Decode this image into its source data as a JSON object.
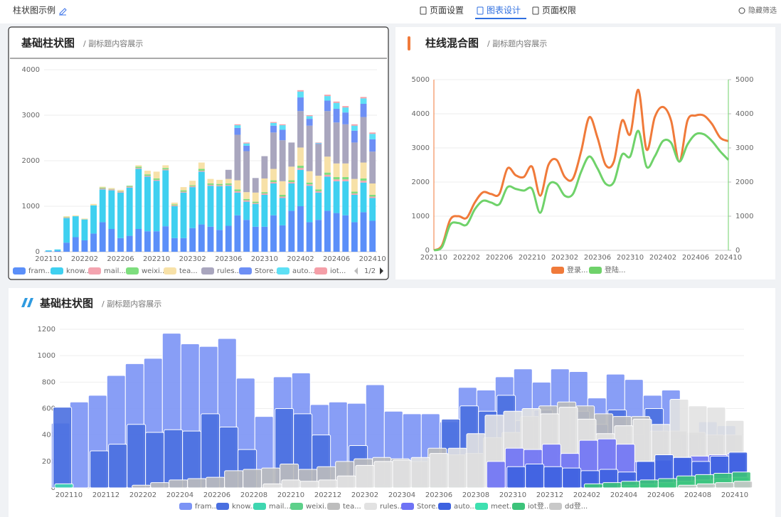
{
  "header": {
    "title": "柱状图示例",
    "tabs": [
      "页面设置",
      "图表设计",
      "页面权限"
    ],
    "active_tab": 1,
    "filter": "隐藏筛选"
  },
  "chart_data": [
    {
      "type": "bar",
      "stacked": true,
      "title": "基础柱状图",
      "subtitle": "/ 副标题内容展示",
      "legend_page": "1/2",
      "categories": [
        "202110",
        null,
        null,
        null,
        "202202",
        null,
        null,
        null,
        "202206",
        null,
        null,
        null,
        "202210",
        null,
        null,
        null,
        "202302",
        null,
        null,
        null,
        "202306",
        null,
        null,
        null,
        "202310",
        null,
        null,
        null,
        "202402",
        null,
        null,
        null,
        "202406",
        null,
        null,
        null,
        "202410"
      ],
      "ylim": [
        0,
        4000
      ],
      "yticks": [
        0,
        1000,
        2000,
        3000,
        4000
      ],
      "grid": true,
      "series": [
        {
          "name": "fram...",
          "color": "#5b8ff9",
          "values": [
            10,
            20,
            200,
            320,
            250,
            400,
            650,
            500,
            300,
            350,
            500,
            450,
            450,
            560,
            300,
            300,
            520,
            600,
            550,
            480,
            570,
            800,
            700,
            550,
            550,
            800,
            580,
            900,
            1000,
            650,
            700,
            900,
            850,
            800,
            650,
            870,
            680
          ]
        },
        {
          "name": "know...",
          "color": "#3fd0f0",
          "values": [
            20,
            30,
            540,
            460,
            460,
            620,
            720,
            850,
            1000,
            1060,
            1320,
            1200,
            1110,
            1230,
            700,
            1000,
            900,
            1160,
            900,
            960,
            880,
            500,
            400,
            500,
            700,
            700,
            600,
            600,
            800,
            800,
            600,
            750,
            700,
            750,
            600,
            650,
            500
          ]
        },
        {
          "name": "mail...",
          "color": "#f4a4b0",
          "values": [
            0,
            0,
            10,
            0,
            0,
            0,
            20,
            20,
            20,
            20,
            20,
            20,
            20,
            20,
            20,
            20,
            20,
            20,
            20,
            20,
            20,
            30,
            30,
            20,
            30,
            30,
            30,
            30,
            40,
            30,
            30,
            40,
            40,
            40,
            30,
            40,
            30
          ]
        },
        {
          "name": "weixi...",
          "color": "#7ede7e",
          "values": [
            0,
            0,
            10,
            0,
            0,
            0,
            20,
            10,
            10,
            20,
            30,
            30,
            30,
            30,
            20,
            30,
            20,
            40,
            30,
            30,
            30,
            40,
            30,
            30,
            30,
            40,
            40,
            40,
            50,
            40,
            40,
            50,
            50,
            50,
            40,
            50,
            40
          ]
        },
        {
          "name": "tea...",
          "color": "#f7e1a8",
          "values": [
            0,
            0,
            20,
            20,
            20,
            30,
            20,
            20,
            30,
            0,
            30,
            80,
            150,
            60,
            40,
            70,
            100,
            140,
            100,
            90,
            100,
            200,
            150,
            200,
            300,
            250,
            300,
            300,
            400,
            250,
            300,
            350,
            300,
            300,
            280,
            350,
            250
          ]
        },
        {
          "name": "rules...",
          "color": "#a9a6be",
          "values": [
            0,
            0,
            0,
            0,
            0,
            0,
            0,
            0,
            0,
            0,
            0,
            0,
            0,
            0,
            0,
            0,
            0,
            0,
            0,
            0,
            200,
            1000,
            900,
            320,
            490,
            800,
            900,
            530,
            800,
            1000,
            700,
            1000,
            900,
            860,
            800,
            1000,
            700
          ]
        },
        {
          "name": "Store...",
          "color": "#6d8ff5",
          "values": [
            0,
            0,
            0,
            0,
            0,
            0,
            0,
            0,
            0,
            0,
            0,
            0,
            0,
            0,
            0,
            0,
            0,
            0,
            0,
            0,
            0,
            150,
            120,
            0,
            0,
            150,
            230,
            0,
            300,
            150,
            10,
            230,
            300,
            260,
            260,
            290,
            270
          ]
        },
        {
          "name": "auto...",
          "color": "#5ee0f5",
          "values": [
            0,
            0,
            0,
            0,
            0,
            0,
            0,
            0,
            0,
            0,
            0,
            0,
            0,
            0,
            0,
            0,
            0,
            0,
            0,
            0,
            0,
            60,
            50,
            0,
            0,
            60,
            100,
            0,
            130,
            60,
            10,
            100,
            130,
            110,
            110,
            120,
            120
          ]
        },
        {
          "name": "iot...",
          "color": "#f59fa8",
          "values": [
            0,
            0,
            0,
            0,
            0,
            0,
            0,
            0,
            0,
            0,
            0,
            0,
            0,
            0,
            0,
            0,
            0,
            0,
            0,
            0,
            0,
            20,
            20,
            0,
            0,
            20,
            20,
            0,
            30,
            20,
            10,
            30,
            30,
            30,
            30,
            30,
            30
          ]
        }
      ]
    },
    {
      "type": "line",
      "smooth": true,
      "title": "柱线混合图",
      "subtitle": "/ 副标题内容展示",
      "categories": [
        "202110",
        null,
        null,
        null,
        "202202",
        null,
        null,
        null,
        "202206",
        null,
        null,
        null,
        "202210",
        null,
        null,
        null,
        "202302",
        null,
        null,
        null,
        "202306",
        null,
        null,
        null,
        "202310",
        null,
        null,
        null,
        "202402",
        null,
        null,
        null,
        "202406",
        null,
        null,
        null,
        "202410"
      ],
      "ylim": [
        0,
        5000
      ],
      "yticks": [
        0,
        1000,
        2000,
        3000,
        4000,
        5000
      ],
      "y2lim": [
        0,
        5000
      ],
      "y2ticks": [
        0,
        1000,
        2000,
        3000,
        4000,
        5000
      ],
      "grid": true,
      "series": [
        {
          "name": "登录...",
          "color": "#f07a3a",
          "values": [
            0,
            150,
            900,
            1000,
            950,
            1400,
            1700,
            1650,
            1650,
            2400,
            2200,
            2150,
            2450,
            1600,
            2500,
            2650,
            2150,
            2100,
            2900,
            3900,
            3300,
            2500,
            2600,
            3800,
            3400,
            4700,
            2950,
            3900,
            4200,
            3800,
            2600,
            3800,
            3950,
            3950,
            3700,
            3300,
            3200
          ]
        },
        {
          "name": "登陆...",
          "color": "#6fd26a",
          "axis": "y2",
          "values": [
            0,
            100,
            750,
            800,
            750,
            1200,
            1450,
            1400,
            1350,
            1850,
            1800,
            1750,
            1800,
            1100,
            1900,
            1950,
            1600,
            1650,
            2300,
            2750,
            2400,
            1950,
            2000,
            2800,
            2750,
            3500,
            2450,
            2750,
            3200,
            3150,
            2600,
            3100,
            3400,
            3400,
            3200,
            2900,
            2650
          ]
        }
      ]
    },
    {
      "type": "bar",
      "stacked": false,
      "title": "基础柱状图",
      "subtitle": "/ 副标题内容展示",
      "categories": [
        "202110",
        null,
        "202112",
        null,
        "202202",
        null,
        "202204",
        null,
        "202206",
        null,
        "202208",
        null,
        "202210",
        null,
        "202212",
        null,
        "202302",
        null,
        "202304",
        null,
        "202306",
        null,
        "202308",
        null,
        "202310",
        null,
        "202312",
        null,
        "202402",
        null,
        "202404",
        null,
        "202406",
        null,
        "202408",
        null,
        "202410"
      ],
      "ylim": [
        0,
        1200
      ],
      "yticks": [
        0,
        200,
        400,
        600,
        800,
        1000,
        1200
      ],
      "grid": true,
      "series": [
        {
          "name": "fram...",
          "color": "#7b93f5",
          "values": [
            490,
            650,
            700,
            850,
            940,
            980,
            1170,
            1090,
            1070,
            1130,
            830,
            540,
            840,
            870,
            630,
            650,
            640,
            780,
            580,
            560,
            560,
            500,
            760,
            740,
            840,
            900,
            800,
            900,
            880,
            680,
            860,
            820,
            700,
            740,
            400,
            500,
            470
          ]
        },
        {
          "name": "know...",
          "color": "#4a6fe0",
          "values": [
            610,
            0,
            280,
            330,
            480,
            420,
            440,
            430,
            560,
            460,
            290,
            0,
            600,
            560,
            400,
            0,
            320,
            0,
            0,
            0,
            0,
            520,
            620,
            580,
            700,
            510,
            590,
            300,
            580,
            480,
            590,
            400,
            600,
            370,
            290,
            380,
            270
          ]
        },
        {
          "name": "mail...",
          "color": "#3fd6b0",
          "values": [
            30,
            0,
            0,
            0,
            0,
            0,
            0,
            0,
            0,
            0,
            0,
            0,
            0,
            0,
            0,
            0,
            0,
            20,
            20,
            20,
            20,
            20,
            20,
            20,
            20,
            20,
            20,
            20,
            20,
            20,
            20,
            20,
            40,
            50,
            60,
            60,
            60
          ]
        },
        {
          "name": "weixi...",
          "color": "#5ed08a",
          "values": [
            0,
            0,
            0,
            0,
            0,
            0,
            0,
            0,
            0,
            0,
            0,
            0,
            0,
            0,
            0,
            0,
            0,
            0,
            0,
            0,
            0,
            0,
            0,
            0,
            0,
            0,
            0,
            0,
            0,
            30,
            50,
            60,
            70,
            80,
            100,
            120,
            110
          ]
        },
        {
          "name": "tea...",
          "color": "#bdbdbd",
          "values": [
            0,
            0,
            0,
            0,
            20,
            40,
            60,
            70,
            80,
            130,
            140,
            150,
            180,
            140,
            160,
            200,
            220,
            230,
            220,
            200,
            300,
            250,
            260,
            380,
            420,
            540,
            620,
            650,
            620,
            560,
            540,
            540,
            430,
            430,
            420,
            400,
            400
          ]
        },
        {
          "name": "rules...",
          "color": "#e2e2e2",
          "values": [
            0,
            0,
            0,
            0,
            0,
            0,
            0,
            0,
            0,
            0,
            0,
            30,
            60,
            50,
            60,
            90,
            170,
            200,
            210,
            230,
            260,
            300,
            410,
            550,
            580,
            600,
            560,
            610,
            520,
            410,
            470,
            520,
            480,
            670,
            620,
            610,
            510
          ]
        },
        {
          "name": "Store...",
          "color": "#6e72f5",
          "values": [
            0,
            0,
            0,
            0,
            0,
            0,
            0,
            0,
            0,
            0,
            0,
            0,
            0,
            0,
            0,
            0,
            0,
            0,
            0,
            0,
            0,
            0,
            0,
            200,
            300,
            290,
            330,
            260,
            360,
            370,
            330,
            200,
            210,
            230,
            240,
            250,
            260
          ]
        },
        {
          "name": "auto...",
          "color": "#3d62e0",
          "values": [
            0,
            0,
            0,
            0,
            0,
            0,
            0,
            0,
            0,
            0,
            0,
            0,
            0,
            0,
            0,
            0,
            0,
            0,
            0,
            0,
            0,
            0,
            0,
            0,
            160,
            180,
            160,
            150,
            130,
            140,
            120,
            200,
            250,
            230,
            200,
            240,
            270
          ]
        },
        {
          "name": "meet...",
          "color": "#3ee0b0",
          "values": [
            0,
            0,
            0,
            0,
            0,
            0,
            0,
            0,
            0,
            0,
            0,
            0,
            0,
            0,
            0,
            0,
            0,
            0,
            0,
            0,
            0,
            0,
            0,
            0,
            0,
            0,
            0,
            0,
            0,
            0,
            20,
            30,
            40,
            50,
            60,
            70,
            80
          ]
        },
        {
          "name": "iot登...",
          "color": "#3cc37a",
          "values": [
            0,
            0,
            0,
            0,
            0,
            0,
            0,
            0,
            0,
            0,
            0,
            0,
            0,
            0,
            0,
            0,
            0,
            0,
            0,
            0,
            0,
            0,
            0,
            0,
            0,
            0,
            0,
            0,
            30,
            40,
            50,
            60,
            70,
            90,
            100,
            110,
            120
          ]
        },
        {
          "name": "dd登...",
          "color": "#c8c8c8",
          "values": [
            0,
            0,
            0,
            0,
            0,
            0,
            0,
            0,
            0,
            0,
            0,
            0,
            0,
            0,
            0,
            0,
            0,
            0,
            0,
            0,
            0,
            0,
            0,
            0,
            0,
            0,
            0,
            0,
            0,
            0,
            0,
            0,
            0,
            20,
            30,
            40,
            50
          ]
        }
      ]
    }
  ]
}
